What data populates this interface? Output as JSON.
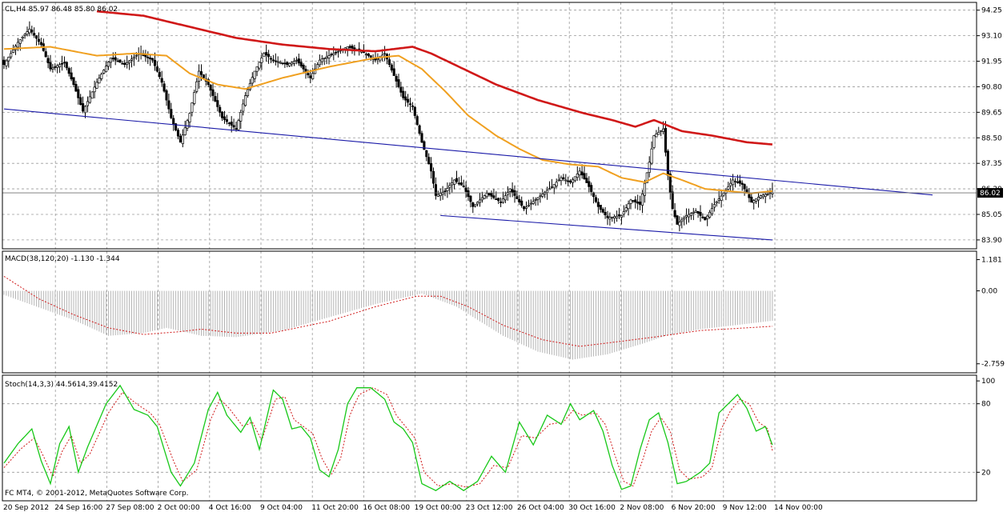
{
  "window": {
    "symbol_header": "CL,H4  85.97 86.48 85.80 86.02",
    "price_badge": "86.02",
    "copyright": "FC MT4, © 2001-2012, MetaQuotes Software Corp."
  },
  "colors": {
    "background": "#ffffff",
    "grid": "#9a9a9a",
    "candle": "#000000",
    "ma_fast": "#f0a020",
    "ma_slow": "#d01818",
    "trendline": "#1a1aa8",
    "macd_hist": "#b4b4b4",
    "macd_signal": "#d01818",
    "stoch_main": "#18c818",
    "stoch_signal": "#d01818"
  },
  "chart_data": [
    {
      "type": "candlestick",
      "name": "CL,H4",
      "ylim": [
        83.5,
        94.6
      ],
      "y_ticks": [
        "94.25",
        "93.10",
        "91.95",
        "90.80",
        "89.65",
        "88.50",
        "87.35",
        "86.20",
        "85.05",
        "83.90"
      ],
      "x_ticks": [
        "20 Sep 2012",
        "24 Sep 16:00",
        "27 Sep 08:00",
        "2 Oct 00:00",
        "4 Oct 16:00",
        "9 Oct 04:00",
        "11 Oct 20:00",
        "16 Oct 08:00",
        "19 Oct 00:00",
        "23 Oct 12:00",
        "26 Oct 04:00",
        "30 Oct 16:00",
        "2 Nov 08:00",
        "6 Nov 20:00",
        "9 Nov 12:00",
        "14 Nov 00:00"
      ],
      "last_price": 86.02,
      "close_anchors": [
        [
          0,
          91.8
        ],
        [
          6,
          92.8
        ],
        [
          11,
          93.4
        ],
        [
          16,
          92.7
        ],
        [
          20,
          91.6
        ],
        [
          26,
          91.9
        ],
        [
          30,
          90.9
        ],
        [
          34,
          89.7
        ],
        [
          40,
          91.0
        ],
        [
          46,
          92.1
        ],
        [
          52,
          91.8
        ],
        [
          58,
          92.3
        ],
        [
          64,
          92.0
        ],
        [
          68,
          91.0
        ],
        [
          72,
          89.4
        ],
        [
          76,
          88.3
        ],
        [
          80,
          89.6
        ],
        [
          84,
          91.5
        ],
        [
          88,
          90.9
        ],
        [
          94,
          89.4
        ],
        [
          100,
          88.9
        ],
        [
          104,
          90.4
        ],
        [
          108,
          91.5
        ],
        [
          112,
          92.3
        ],
        [
          116,
          92.0
        ],
        [
          122,
          91.8
        ],
        [
          126,
          92.0
        ],
        [
          132,
          91.2
        ],
        [
          136,
          92.0
        ],
        [
          142,
          92.3
        ],
        [
          148,
          92.6
        ],
        [
          154,
          92.4
        ],
        [
          160,
          92.0
        ],
        [
          164,
          92.3
        ],
        [
          168,
          91.3
        ],
        [
          172,
          90.3
        ],
        [
          176,
          89.9
        ],
        [
          180,
          88.3
        ],
        [
          184,
          87.0
        ],
        [
          186,
          85.9
        ],
        [
          190,
          86.1
        ],
        [
          194,
          86.6
        ],
        [
          198,
          86.3
        ],
        [
          202,
          85.4
        ],
        [
          208,
          86.0
        ],
        [
          214,
          85.6
        ],
        [
          218,
          86.2
        ],
        [
          224,
          85.3
        ],
        [
          230,
          85.8
        ],
        [
          236,
          86.3
        ],
        [
          240,
          86.7
        ],
        [
          244,
          86.5
        ],
        [
          248,
          87.0
        ],
        [
          252,
          86.3
        ],
        [
          256,
          85.4
        ],
        [
          260,
          84.9
        ],
        [
          266,
          85.0
        ],
        [
          270,
          85.7
        ],
        [
          274,
          85.5
        ],
        [
          278,
          87.4
        ],
        [
          280,
          88.6
        ],
        [
          284,
          88.9
        ],
        [
          286,
          86.8
        ],
        [
          288,
          85.3
        ],
        [
          290,
          84.6
        ],
        [
          294,
          85.0
        ],
        [
          298,
          85.2
        ],
        [
          302,
          84.8
        ],
        [
          306,
          85.5
        ],
        [
          310,
          86.0
        ],
        [
          314,
          86.6
        ],
        [
          318,
          86.4
        ],
        [
          322,
          85.6
        ],
        [
          326,
          85.9
        ],
        [
          331,
          86.02
        ]
      ],
      "trend_channel": {
        "upper_line": [
          [
            0,
            89.8
          ],
          [
            400,
            86.1
          ]
        ],
        "lower_line": [
          [
            188,
            85.0
          ],
          [
            331,
            83.9
          ]
        ]
      },
      "ma_fast_anchors": [
        [
          0,
          92.5
        ],
        [
          20,
          92.6
        ],
        [
          40,
          92.2
        ],
        [
          56,
          92.3
        ],
        [
          70,
          92.2
        ],
        [
          80,
          91.4
        ],
        [
          92,
          90.9
        ],
        [
          104,
          90.7
        ],
        [
          120,
          91.2
        ],
        [
          140,
          91.7
        ],
        [
          160,
          92.1
        ],
        [
          170,
          92.2
        ],
        [
          180,
          91.6
        ],
        [
          190,
          90.6
        ],
        [
          200,
          89.5
        ],
        [
          212,
          88.6
        ],
        [
          222,
          88.0
        ],
        [
          232,
          87.5
        ],
        [
          244,
          87.3
        ],
        [
          256,
          87.2
        ],
        [
          266,
          86.7
        ],
        [
          276,
          86.5
        ],
        [
          284,
          86.9
        ],
        [
          292,
          86.6
        ],
        [
          302,
          86.2
        ],
        [
          312,
          86.1
        ],
        [
          322,
          86.0
        ],
        [
          331,
          86.1
        ]
      ],
      "ma_slow_anchors": [
        [
          40,
          94.2
        ],
        [
          60,
          94.0
        ],
        [
          80,
          93.5
        ],
        [
          100,
          93.0
        ],
        [
          120,
          92.7
        ],
        [
          140,
          92.5
        ],
        [
          160,
          92.4
        ],
        [
          176,
          92.6
        ],
        [
          184,
          92.3
        ],
        [
          196,
          91.7
        ],
        [
          212,
          90.9
        ],
        [
          230,
          90.2
        ],
        [
          250,
          89.6
        ],
        [
          262,
          89.3
        ],
        [
          272,
          89.0
        ],
        [
          280,
          89.3
        ],
        [
          292,
          88.8
        ],
        [
          305,
          88.6
        ],
        [
          320,
          88.3
        ],
        [
          331,
          88.2
        ]
      ]
    },
    {
      "type": "histogram",
      "name": "MACD(38,120,20) -1.130 -1.344",
      "ylim": [
        -2.759,
        1.181
      ],
      "y_ticks": [
        "1.181",
        "0.00",
        "-2.759"
      ],
      "hist_anchors": [
        [
          0,
          -0.15
        ],
        [
          30,
          -1.1
        ],
        [
          45,
          -1.7
        ],
        [
          60,
          -1.6
        ],
        [
          70,
          -1.4
        ],
        [
          85,
          -1.7
        ],
        [
          100,
          -1.75
        ],
        [
          120,
          -1.5
        ],
        [
          140,
          -1.0
        ],
        [
          160,
          -0.5
        ],
        [
          180,
          -0.1
        ],
        [
          195,
          -0.6
        ],
        [
          215,
          -1.7
        ],
        [
          230,
          -2.3
        ],
        [
          245,
          -2.6
        ],
        [
          260,
          -2.4
        ],
        [
          275,
          -2.0
        ],
        [
          285,
          -1.7
        ],
        [
          300,
          -1.45
        ],
        [
          315,
          -1.3
        ],
        [
          331,
          -1.13
        ]
      ],
      "signal_anchors": [
        [
          0,
          0.55
        ],
        [
          15,
          -0.3
        ],
        [
          30,
          -0.9
        ],
        [
          45,
          -1.4
        ],
        [
          60,
          -1.65
        ],
        [
          75,
          -1.55
        ],
        [
          85,
          -1.45
        ],
        [
          100,
          -1.6
        ],
        [
          115,
          -1.6
        ],
        [
          140,
          -1.15
        ],
        [
          160,
          -0.6
        ],
        [
          178,
          -0.2
        ],
        [
          188,
          -0.2
        ],
        [
          200,
          -0.6
        ],
        [
          215,
          -1.3
        ],
        [
          232,
          -1.85
        ],
        [
          248,
          -2.1
        ],
        [
          262,
          -1.95
        ],
        [
          280,
          -1.75
        ],
        [
          300,
          -1.5
        ],
        [
          316,
          -1.42
        ],
        [
          331,
          -1.34
        ]
      ]
    },
    {
      "type": "line",
      "name": "Stoch(14,3,3) 44.5614,39.4152",
      "ylim": [
        0,
        100
      ],
      "y_ticks": [
        "100",
        "80",
        "20"
      ],
      "main_anchors": [
        [
          0,
          28
        ],
        [
          6,
          45
        ],
        [
          12,
          58
        ],
        [
          16,
          30
        ],
        [
          20,
          10
        ],
        [
          24,
          45
        ],
        [
          28,
          60
        ],
        [
          32,
          20
        ],
        [
          36,
          42
        ],
        [
          44,
          80
        ],
        [
          50,
          96
        ],
        [
          56,
          75
        ],
        [
          62,
          70
        ],
        [
          66,
          60
        ],
        [
          72,
          20
        ],
        [
          76,
          8
        ],
        [
          82,
          28
        ],
        [
          88,
          75
        ],
        [
          92,
          90
        ],
        [
          96,
          70
        ],
        [
          102,
          55
        ],
        [
          106,
          68
        ],
        [
          110,
          40
        ],
        [
          116,
          92
        ],
        [
          120,
          84
        ],
        [
          124,
          58
        ],
        [
          128,
          60
        ],
        [
          132,
          50
        ],
        [
          136,
          22
        ],
        [
          140,
          16
        ],
        [
          144,
          40
        ],
        [
          148,
          80
        ],
        [
          152,
          94
        ],
        [
          158,
          94
        ],
        [
          164,
          84
        ],
        [
          168,
          64
        ],
        [
          172,
          58
        ],
        [
          176,
          46
        ],
        [
          180,
          10
        ],
        [
          186,
          4
        ],
        [
          192,
          12
        ],
        [
          198,
          4
        ],
        [
          204,
          12
        ],
        [
          210,
          34
        ],
        [
          216,
          20
        ],
        [
          222,
          64
        ],
        [
          228,
          44
        ],
        [
          234,
          70
        ],
        [
          240,
          62
        ],
        [
          244,
          80
        ],
        [
          248,
          66
        ],
        [
          254,
          74
        ],
        [
          258,
          56
        ],
        [
          262,
          26
        ],
        [
          266,
          5
        ],
        [
          270,
          8
        ],
        [
          274,
          40
        ],
        [
          278,
          66
        ],
        [
          282,
          72
        ],
        [
          286,
          46
        ],
        [
          290,
          10
        ],
        [
          294,
          12
        ],
        [
          300,
          20
        ],
        [
          304,
          28
        ],
        [
          308,
          72
        ],
        [
          312,
          80
        ],
        [
          316,
          88
        ],
        [
          320,
          76
        ],
        [
          324,
          56
        ],
        [
          328,
          60
        ],
        [
          331,
          44
        ]
      ],
      "signal_anchors": [
        [
          0,
          24
        ],
        [
          7,
          40
        ],
        [
          13,
          50
        ],
        [
          17,
          34
        ],
        [
          21,
          16
        ],
        [
          25,
          38
        ],
        [
          29,
          52
        ],
        [
          33,
          28
        ],
        [
          37,
          36
        ],
        [
          45,
          72
        ],
        [
          51,
          90
        ],
        [
          57,
          80
        ],
        [
          63,
          72
        ],
        [
          67,
          62
        ],
        [
          73,
          30
        ],
        [
          77,
          12
        ],
        [
          83,
          22
        ],
        [
          89,
          66
        ],
        [
          93,
          84
        ],
        [
          97,
          76
        ],
        [
          103,
          60
        ],
        [
          107,
          64
        ],
        [
          111,
          48
        ],
        [
          117,
          84
        ],
        [
          121,
          86
        ],
        [
          125,
          66
        ],
        [
          129,
          60
        ],
        [
          133,
          54
        ],
        [
          137,
          32
        ],
        [
          141,
          18
        ],
        [
          145,
          32
        ],
        [
          149,
          70
        ],
        [
          153,
          88
        ],
        [
          159,
          94
        ],
        [
          165,
          88
        ],
        [
          169,
          70
        ],
        [
          173,
          60
        ],
        [
          177,
          50
        ],
        [
          181,
          20
        ],
        [
          187,
          8
        ],
        [
          193,
          10
        ],
        [
          199,
          7
        ],
        [
          205,
          10
        ],
        [
          211,
          26
        ],
        [
          217,
          24
        ],
        [
          223,
          52
        ],
        [
          229,
          50
        ],
        [
          235,
          62
        ],
        [
          241,
          64
        ],
        [
          245,
          74
        ],
        [
          249,
          70
        ],
        [
          255,
          72
        ],
        [
          259,
          62
        ],
        [
          263,
          36
        ],
        [
          267,
          12
        ],
        [
          271,
          8
        ],
        [
          275,
          30
        ],
        [
          279,
          56
        ],
        [
          283,
          68
        ],
        [
          287,
          56
        ],
        [
          291,
          22
        ],
        [
          295,
          14
        ],
        [
          301,
          16
        ],
        [
          305,
          24
        ],
        [
          309,
          58
        ],
        [
          313,
          74
        ],
        [
          317,
          84
        ],
        [
          321,
          80
        ],
        [
          325,
          64
        ],
        [
          329,
          58
        ],
        [
          331,
          39
        ]
      ]
    }
  ]
}
